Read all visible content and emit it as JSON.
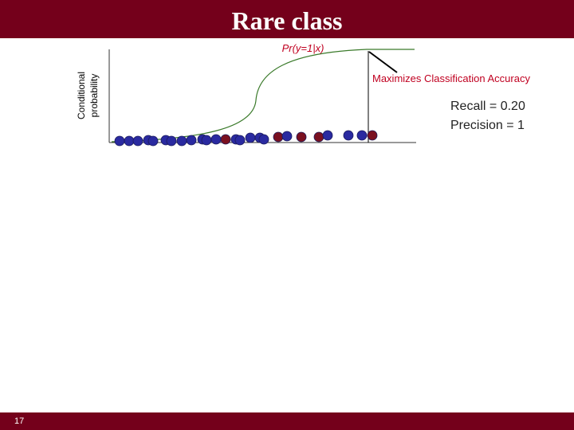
{
  "header": {
    "title": "Rare class"
  },
  "diagram": {
    "axis_label": [
      "Conditional",
      "probability"
    ],
    "curve_label": "Pr(y=1|x)",
    "annotation": "Maximizes Classification Accuracy",
    "metrics": [
      "Recall = 0.20",
      "Precision = 1"
    ]
  },
  "footer": {
    "page_number": "17"
  }
}
